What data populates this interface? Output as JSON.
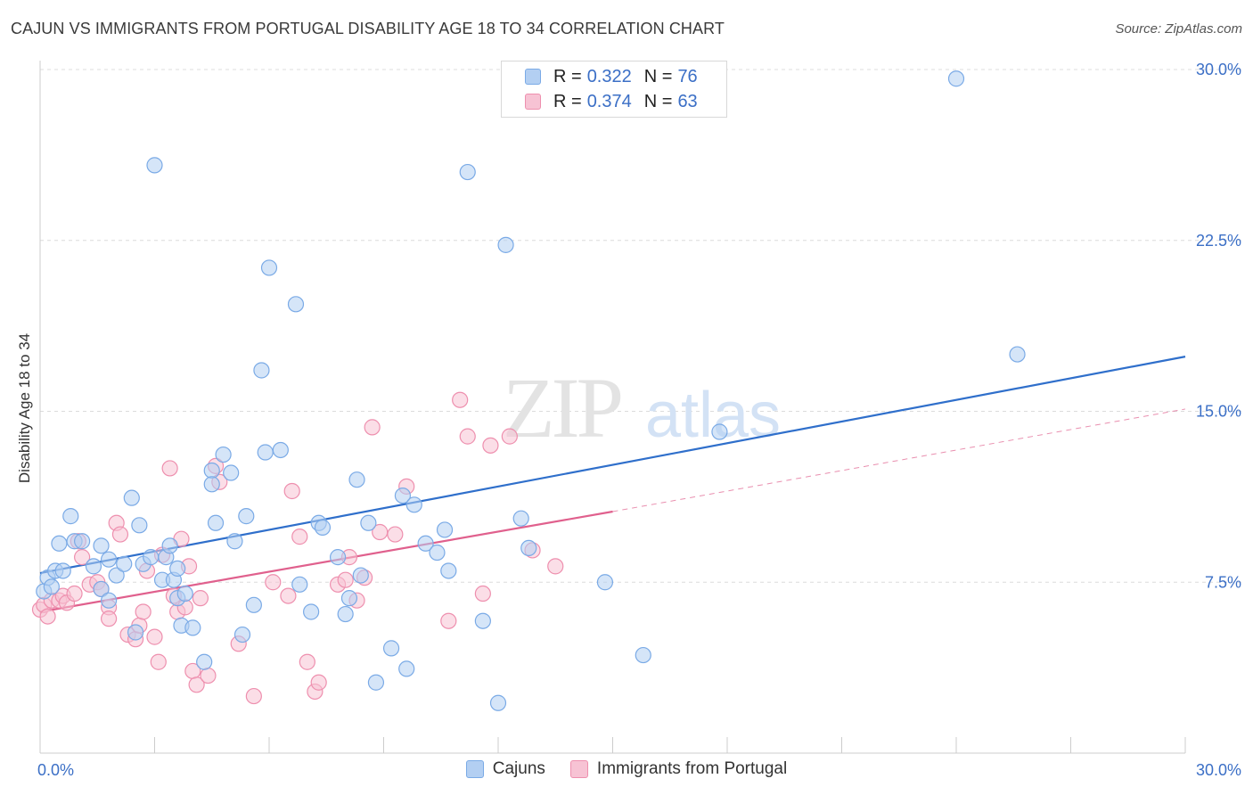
{
  "chart_data": {
    "type": "scatter",
    "title": "CAJUN VS IMMIGRANTS FROM PORTUGAL DISABILITY AGE 18 TO 34 CORRELATION CHART",
    "source": "Source: ZipAtlas.com",
    "ylabel": "Disability Age 18 to 34",
    "xlabel": "",
    "xlim": [
      0,
      30
    ],
    "ylim": [
      0,
      30
    ],
    "x_tick_labels": [
      "0.0%",
      "30.0%"
    ],
    "y_ticks": [
      7.5,
      15.0,
      22.5,
      30.0
    ],
    "y_tick_labels": [
      "7.5%",
      "15.0%",
      "22.5%",
      "30.0%"
    ],
    "watermark": "ZIPatlas",
    "legend": {
      "r_label": "R =",
      "n_label": "N =",
      "entries": [
        {
          "name": "Cajuns",
          "r": "0.322",
          "n": "76",
          "color": "#7aaae6",
          "fill": "#b3cff2"
        },
        {
          "name": "Immigrants from Portugal",
          "r": "0.374",
          "n": "63",
          "color": "#ee8fae",
          "fill": "#f7c3d4"
        }
      ]
    },
    "series": [
      {
        "name": "Cajuns",
        "color": "#7aaae6",
        "trend": {
          "x0": 0,
          "y0": 7.9,
          "x1": 30,
          "y1": 17.4,
          "color": "#2f6fcb"
        },
        "points": [
          [
            0.1,
            7.1
          ],
          [
            0.2,
            7.7
          ],
          [
            0.4,
            8.0
          ],
          [
            0.5,
            9.2
          ],
          [
            0.6,
            8.0
          ],
          [
            0.8,
            10.4
          ],
          [
            0.9,
            9.3
          ],
          [
            1.1,
            9.3
          ],
          [
            1.4,
            8.2
          ],
          [
            1.6,
            7.2
          ],
          [
            1.8,
            6.7
          ],
          [
            1.6,
            9.1
          ],
          [
            1.8,
            8.5
          ],
          [
            2.0,
            7.8
          ],
          [
            2.2,
            8.3
          ],
          [
            2.4,
            11.2
          ],
          [
            2.5,
            5.3
          ],
          [
            2.6,
            10.0
          ],
          [
            2.7,
            8.3
          ],
          [
            2.9,
            8.6
          ],
          [
            3.0,
            25.8
          ],
          [
            3.2,
            7.6
          ],
          [
            3.3,
            8.6
          ],
          [
            3.4,
            9.1
          ],
          [
            3.5,
            7.6
          ],
          [
            3.6,
            8.1
          ],
          [
            3.6,
            6.8
          ],
          [
            3.7,
            5.6
          ],
          [
            3.8,
            7.0
          ],
          [
            4.0,
            5.5
          ],
          [
            4.3,
            4.0
          ],
          [
            4.5,
            12.4
          ],
          [
            4.5,
            11.8
          ],
          [
            4.6,
            10.1
          ],
          [
            4.8,
            13.1
          ],
          [
            5.0,
            12.3
          ],
          [
            5.1,
            9.3
          ],
          [
            5.3,
            5.2
          ],
          [
            5.4,
            10.4
          ],
          [
            5.6,
            6.5
          ],
          [
            5.8,
            16.8
          ],
          [
            5.9,
            13.2
          ],
          [
            6.0,
            21.3
          ],
          [
            6.3,
            13.3
          ],
          [
            6.7,
            19.7
          ],
          [
            6.8,
            7.4
          ],
          [
            7.1,
            6.2
          ],
          [
            7.3,
            10.1
          ],
          [
            7.4,
            9.9
          ],
          [
            7.8,
            8.6
          ],
          [
            8.0,
            6.1
          ],
          [
            8.1,
            6.8
          ],
          [
            8.3,
            12.0
          ],
          [
            8.4,
            7.8
          ],
          [
            8.6,
            10.1
          ],
          [
            8.8,
            3.1
          ],
          [
            9.2,
            4.6
          ],
          [
            9.5,
            11.3
          ],
          [
            9.6,
            3.7
          ],
          [
            9.8,
            10.9
          ],
          [
            10.1,
            9.2
          ],
          [
            10.4,
            8.8
          ],
          [
            10.6,
            9.8
          ],
          [
            10.7,
            8.0
          ],
          [
            11.2,
            25.5
          ],
          [
            11.6,
            5.8
          ],
          [
            12.0,
            2.2
          ],
          [
            12.2,
            22.3
          ],
          [
            12.6,
            10.3
          ],
          [
            12.8,
            9.0
          ],
          [
            14.8,
            7.5
          ],
          [
            15.8,
            4.3
          ],
          [
            17.8,
            14.1
          ],
          [
            24.0,
            29.6
          ],
          [
            25.6,
            17.5
          ],
          [
            0.3,
            7.3
          ]
        ]
      },
      {
        "name": "Immigrants from Portugal",
        "color": "#ee8fae",
        "trend": {
          "x0": 0,
          "y0": 6.2,
          "x1": 15,
          "y1": 10.6,
          "color": "#e0608d"
        },
        "trend_ext": {
          "x0": 15,
          "y0": 10.6,
          "x1": 30,
          "y1": 15.1
        },
        "points": [
          [
            0.0,
            6.3
          ],
          [
            0.1,
            6.5
          ],
          [
            0.3,
            6.7
          ],
          [
            0.5,
            6.7
          ],
          [
            0.6,
            6.9
          ],
          [
            0.7,
            6.6
          ],
          [
            0.9,
            7.0
          ],
          [
            1.0,
            9.3
          ],
          [
            1.1,
            8.6
          ],
          [
            1.3,
            7.4
          ],
          [
            1.5,
            7.5
          ],
          [
            1.6,
            7.2
          ],
          [
            1.8,
            6.4
          ],
          [
            1.8,
            5.9
          ],
          [
            2.0,
            10.1
          ],
          [
            2.1,
            9.6
          ],
          [
            2.3,
            5.2
          ],
          [
            2.5,
            5.0
          ],
          [
            2.6,
            5.6
          ],
          [
            2.7,
            6.2
          ],
          [
            2.8,
            8.0
          ],
          [
            3.0,
            5.1
          ],
          [
            3.1,
            4.0
          ],
          [
            3.2,
            8.7
          ],
          [
            3.4,
            12.5
          ],
          [
            3.5,
            6.9
          ],
          [
            3.6,
            6.2
          ],
          [
            3.7,
            9.4
          ],
          [
            3.8,
            6.4
          ],
          [
            3.9,
            8.2
          ],
          [
            4.0,
            3.6
          ],
          [
            4.1,
            3.0
          ],
          [
            4.2,
            6.8
          ],
          [
            4.4,
            3.4
          ],
          [
            4.6,
            12.6
          ],
          [
            4.7,
            11.9
          ],
          [
            5.2,
            4.8
          ],
          [
            5.6,
            2.5
          ],
          [
            6.1,
            7.5
          ],
          [
            6.5,
            6.9
          ],
          [
            6.6,
            11.5
          ],
          [
            6.8,
            9.5
          ],
          [
            7.0,
            4.0
          ],
          [
            7.2,
            2.7
          ],
          [
            7.3,
            3.1
          ],
          [
            7.8,
            7.4
          ],
          [
            8.0,
            7.6
          ],
          [
            8.1,
            8.6
          ],
          [
            8.3,
            6.7
          ],
          [
            8.5,
            7.7
          ],
          [
            8.7,
            14.3
          ],
          [
            8.9,
            9.7
          ],
          [
            9.3,
            9.6
          ],
          [
            9.6,
            11.7
          ],
          [
            10.7,
            5.8
          ],
          [
            11.0,
            15.5
          ],
          [
            11.2,
            13.9
          ],
          [
            11.6,
            7.0
          ],
          [
            11.8,
            13.5
          ],
          [
            12.3,
            13.9
          ],
          [
            12.9,
            8.9
          ],
          [
            13.5,
            8.2
          ],
          [
            0.2,
            6.0
          ]
        ]
      }
    ]
  }
}
